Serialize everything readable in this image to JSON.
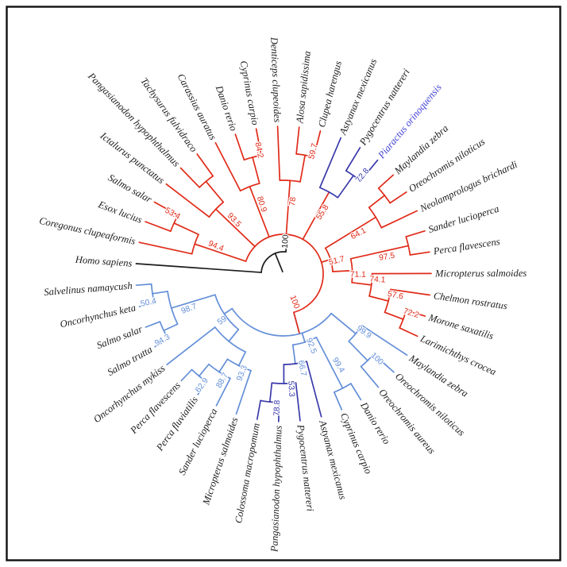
{
  "figure": {
    "kind": "circular-phylogenetic-tree",
    "background": "#ffffff",
    "frame_color": "#111111",
    "colors": {
      "r": "#e02b19",
      "n": "#3a3aab",
      "b": "#648fd8",
      "k": "#1c1c1c",
      "hl": "#4444d6"
    },
    "highlighted_species": "Piaractus orinoquensis",
    "tree": {
      "root": true,
      "ring": 28,
      "c": "k",
      "ch": [
        {
          "n": "Homo sapiens",
          "c": "k"
        },
        {
          "s": "100",
          "c": "r",
          "ring": 50,
          "stem": 84,
          "stemFrom": 28,
          "stemC": "k",
          "labelA": 86,
          "labelR": 41,
          "ch": [
            {
              "s": "94.4",
              "ch": [
                {
                  "n": "Coregonus clupeaformis"
                },
                {
                  "s": "53.4",
                  "ch": [
                    {
                      "n": "Esox lucius"
                    },
                    {
                      "n": "Salmo salar"
                    }
                  ]
                }
              ]
            },
            {
              "s": "93.5",
              "ch": [
                {
                  "n": "Ictalurus punctatus"
                },
                {
                  "ch": [
                    {
                      "n": "Pangasianodon hypophthalmus"
                    },
                    {
                      "n": "Tachysurus fulvidraco"
                    }
                  ]
                }
              ]
            },
            {
              "s": "80.9",
              "ch": [
                {
                  "n": "Carassius auratus"
                },
                {
                  "s": "84.2",
                  "ch": [
                    {
                      "n": "Danio rerio"
                    },
                    {
                      "n": "Cyprinus carpio"
                    }
                  ]
                }
              ]
            },
            {
              "s": "78",
              "ch": [
                {
                  "n": "Denticeps clupeoides"
                },
                {
                  "s": "59.7",
                  "ch": [
                    {
                      "n": "Alosa sapidissima"
                    },
                    {
                      "n": "Clupea harengus"
                    }
                  ]
                }
              ]
            },
            {
              "s": "55.8",
              "ch": [
                {
                  "n": "Astyanax mexicanus",
                  "c": "n"
                },
                {
                  "s": "72.8",
                  "c": "n",
                  "ch": [
                    {
                      "n": "Pygocentrus nattereri"
                    },
                    {
                      "n": "Piaractus orinoquensis",
                      "hl": true
                    }
                  ]
                }
              ]
            },
            {
              "s": "51.7",
              "ch": [
                {
                  "s": "64.1",
                  "ch": [
                    {
                      "ch": [
                        {
                          "n": "Maylandia zebra"
                        },
                        {
                          "n": "Oreochromis niloticus"
                        }
                      ]
                    },
                    {
                      "n": "Neolamprologus brichardi"
                    }
                  ]
                },
                {
                  "s": "71.1",
                  "ch": [
                    {
                      "s": "97.5",
                      "ch": [
                        {
                          "n": "Sander lucioperca"
                        },
                        {
                          "n": "Perca flavescens"
                        }
                      ]
                    },
                    {
                      "s": "74.1",
                      "ch": [
                        {
                          "n": "Micropterus salmoides"
                        },
                        {
                          "s": "57.6",
                          "ch": [
                            {
                              "n": "Chelmon rostratus"
                            },
                            {
                              "s": "72.2",
                              "ch": [
                                {
                                  "n": "Morone saxatilis"
                                },
                                {
                                  "n": "Larimichthys crocea"
                                }
                              ]
                            }
                          ]
                        }
                      ]
                    }
                  ]
                }
              ]
            },
            {
              "s": "100",
              "c": "b",
              "ring": 78,
              "stem": -75,
              "stemFrom": 50,
              "stemC": "r",
              "labelA": -69,
              "labelR": 38,
              "ch": [
                {
                  "s": "99.9",
                  "ch": [
                    {
                      "n": "Maylandia zebra"
                    },
                    {
                      "s": "100",
                      "ch": [
                        {
                          "n": "Oreochromis niloticus"
                        },
                        {
                          "n": "Oreochromis aureus"
                        }
                      ]
                    }
                  ]
                },
                {
                  "s": "92.5",
                  "ch": [
                    {
                      "s": "99.4",
                      "ch": [
                        {
                          "n": "Danio rerio"
                        },
                        {
                          "n": "Cyprinus carpio"
                        }
                      ]
                    },
                    {
                      "s": "66.7",
                      "ch": [
                        {
                          "n": "Astyanax mexicanus",
                          "c": "n"
                        },
                        {
                          "s": "53.3",
                          "c": "n",
                          "ch": [
                            {
                              "n": "Pygocentrus nattereri"
                            },
                            {
                              "s": "78.8",
                              "ch": [
                                {
                                  "n": "Pangasianodon hypophthalmus"
                                },
                                {
                                  "n": "Colossoma macropomum"
                                }
                              ]
                            }
                          ]
                        }
                      ]
                    }
                  ]
                },
                {
                  "s": "59",
                  "ch": [
                    {
                      "ch": [
                        {
                          "s": "93.3",
                          "ch": [
                            {
                              "n": "Micropterus salmoides"
                            },
                            {
                              "s": "88.7",
                              "ch": [
                                {
                                  "n": "Sander lucioperca"
                                },
                                {
                                  "s": "62.9",
                                  "ch": [
                                    {
                                      "n": "Perca fluviatilis"
                                    },
                                    {
                                      "n": "Perca flavescens"
                                    }
                                  ]
                                }
                              ]
                            }
                          ]
                        },
                        {
                          "n": "Oncorhynchus mykiss"
                        }
                      ]
                    },
                    {
                      "s": "98.7",
                      "ch": [
                        {
                          "s": "94.3",
                          "ch": [
                            {
                              "n": "Salmo trutta"
                            },
                            {
                              "n": "Salmo salar"
                            }
                          ]
                        },
                        {
                          "s": "50.4",
                          "ch": [
                            {
                              "n": "Oncorhynchus keta"
                            },
                            {
                              "n": "Salvelinus namaycush"
                            }
                          ]
                        }
                      ]
                    }
                  ]
                }
              ]
            }
          ]
        }
      ]
    }
  }
}
